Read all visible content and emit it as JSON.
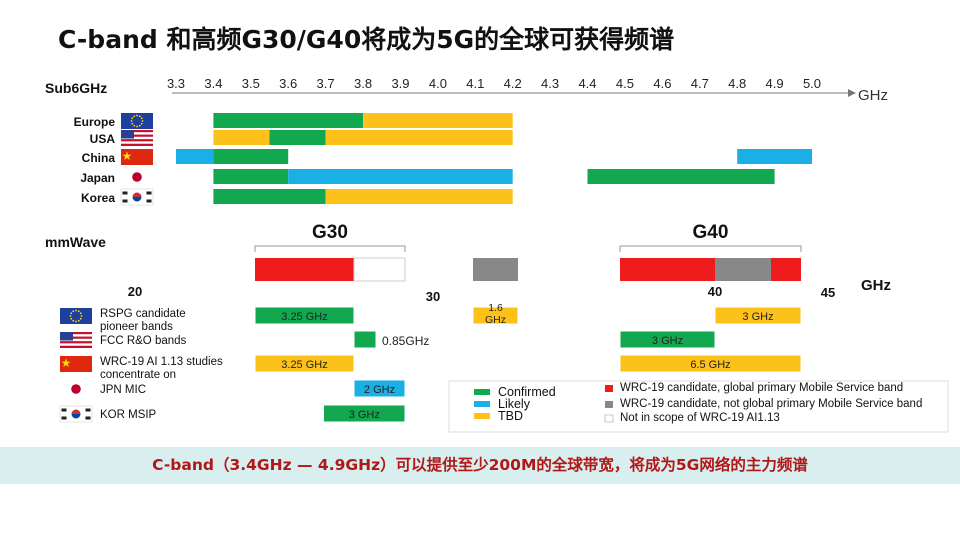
{
  "slide": {
    "title": "C-band 和高频G30/G40将成为5G的全球可获得频谱",
    "banner": "C-band（3.4GHz — 4.9GHz）可以提供至少200M的全球带宽，将成为5G网络的主力频谱"
  },
  "colors": {
    "confirmed": "#12a84f",
    "likely": "#1ab0e6",
    "tbd": "#fcc21a",
    "wrc_global": "#ee1c1c",
    "wrc_not_global": "#888888",
    "banner_bg": "#d9eeee",
    "banner_text": "#b01818"
  },
  "chart_data": [
    {
      "type": "bar",
      "subtype": "range-timeline",
      "title": "Sub6GHz",
      "unit": "GHz",
      "ticks": [
        "3.3",
        "3.4",
        "3.5",
        "3.6",
        "3.7",
        "3.8",
        "3.9",
        "4.0",
        "4.1",
        "4.2",
        "4.3",
        "4.4",
        "4.5",
        "4.6",
        "4.7",
        "4.8",
        "4.9",
        "5.0"
      ],
      "xlim": [
        3.3,
        5.0
      ],
      "rows": [
        {
          "label": "Europe",
          "flag": "eu-flag-icon",
          "segments": [
            {
              "start": 3.4,
              "end": 3.8,
              "status": "confirmed"
            },
            {
              "start": 3.8,
              "end": 4.2,
              "status": "tbd"
            }
          ]
        },
        {
          "label": "USA",
          "flag": "us-flag-icon",
          "segments": [
            {
              "start": 3.4,
              "end": 3.55,
              "status": "tbd"
            },
            {
              "start": 3.55,
              "end": 3.7,
              "status": "confirmed"
            },
            {
              "start": 3.7,
              "end": 4.2,
              "status": "tbd"
            }
          ]
        },
        {
          "label": "China",
          "flag": "cn-flag-icon",
          "segments": [
            {
              "start": 3.3,
              "end": 3.4,
              "status": "likely"
            },
            {
              "start": 3.4,
              "end": 3.6,
              "status": "confirmed"
            },
            {
              "start": 4.8,
              "end": 5.0,
              "status": "likely"
            }
          ]
        },
        {
          "label": "Japan",
          "flag": "jp-flag-icon",
          "segments": [
            {
              "start": 3.4,
              "end": 3.6,
              "status": "confirmed"
            },
            {
              "start": 3.6,
              "end": 4.2,
              "status": "likely"
            },
            {
              "start": 4.4,
              "end": 4.9,
              "status": "confirmed"
            }
          ]
        },
        {
          "label": "Korea",
          "flag": "kr-flag-icon",
          "segments": [
            {
              "start": 3.4,
              "end": 3.7,
              "status": "confirmed"
            },
            {
              "start": 3.7,
              "end": 4.2,
              "status": "tbd"
            }
          ]
        }
      ]
    },
    {
      "type": "bar",
      "subtype": "range-timeline",
      "title": "mmWave",
      "unit": "GHz",
      "axis_labels": [
        {
          "text": "20",
          "value": 20
        },
        {
          "text": "30",
          "value": 30
        },
        {
          "text": "40",
          "value": 40
        },
        {
          "text": "45",
          "value": 45
        }
      ],
      "groups": [
        {
          "label": "G30",
          "start": 24.25,
          "end": 27.5
        },
        {
          "label": "G40",
          "start": 37,
          "end": 43.5
        }
      ],
      "wrc_candidates": [
        {
          "start": 24.25,
          "end": 27.5,
          "status": "wrc_global"
        },
        {
          "start": 27.5,
          "end": 29.5,
          "status": "outline"
        },
        {
          "start": 31.8,
          "end": 33.4,
          "status": "wrc_not_global"
        },
        {
          "start": 37,
          "end": 40.5,
          "status": "wrc_global"
        },
        {
          "start": 40.5,
          "end": 42.5,
          "status": "wrc_not_global"
        },
        {
          "start": 42.5,
          "end": 43.5,
          "status": "wrc_global"
        }
      ],
      "rows": [
        {
          "label": "RSPG candidate pioneer bands",
          "label_lines": [
            "RSPG candidate",
            "pioneer bands"
          ],
          "flag": "eu-flag-icon",
          "segments": [
            {
              "start": 24.25,
              "end": 27.5,
              "status": "confirmed",
              "text": "3.25 GHz"
            },
            {
              "start": 31.8,
              "end": 33.4,
              "status": "tbd",
              "text": "1.6 GHz"
            },
            {
              "start": 40.5,
              "end": 43.5,
              "status": "tbd",
              "text": "3 GHz"
            }
          ]
        },
        {
          "label": "FCC R&O bands",
          "label_lines": [
            "FCC R&O bands"
          ],
          "flag": "us-flag-icon",
          "segments": [
            {
              "start": 27.5,
              "end": 28.35,
              "status": "confirmed",
              "text": "0.85GHz",
              "text_outside": true
            },
            {
              "start": 37,
              "end": 40,
              "status": "confirmed",
              "text": "3 GHz"
            }
          ]
        },
        {
          "label": "WRC-19 AI 1.13 studies concentrate on",
          "label_lines": [
            "WRC-19 AI 1.13 studies",
            "concentrate on"
          ],
          "flag": "cn-flag-icon",
          "segments": [
            {
              "start": 24.25,
              "end": 27.5,
              "status": "tbd",
              "text": "3.25 GHz"
            },
            {
              "start": 37,
              "end": 43.5,
              "status": "tbd",
              "text": "6.5 GHz"
            }
          ]
        },
        {
          "label": "JPN MIC",
          "label_lines": [
            "JPN MIC"
          ],
          "flag": "jp-flag-icon",
          "segments": [
            {
              "start": 27.5,
              "end": 29.5,
              "status": "likely",
              "text": "2 GHz"
            }
          ]
        },
        {
          "label": "KOR MSIP",
          "label_lines": [
            "KOR MSIP"
          ],
          "flag": "kr-flag-icon",
          "segments": [
            {
              "start": 26.5,
              "end": 29.5,
              "status": "confirmed",
              "text": "3 GHz"
            }
          ]
        }
      ],
      "legend": {
        "placement": "bottom-right",
        "status": [
          {
            "key": "confirmed",
            "label": "Confirmed"
          },
          {
            "key": "likely",
            "label": "Likely"
          },
          {
            "key": "tbd",
            "label": "TBD"
          }
        ],
        "wrc": [
          {
            "key": "wrc_global",
            "label": "WRC-19 candidate, global primary Mobile Service band"
          },
          {
            "key": "wrc_not_global",
            "label": "WRC-19 candidate, not global primary Mobile Service band"
          },
          {
            "key": "outline",
            "label": "Not in scope of WRC-19 AI1.13"
          }
        ]
      }
    }
  ]
}
